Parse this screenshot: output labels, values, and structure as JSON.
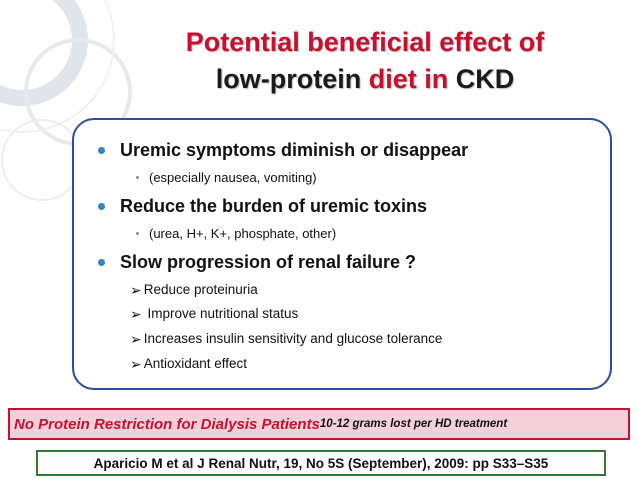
{
  "slide": {
    "title": {
      "line1": "Potential beneficial effect of",
      "line2_part1": "low-protein",
      "line2_part2": "diet in",
      "line2_part3": "CKD"
    },
    "bullets": [
      {
        "text": "Uremic symptoms diminish or disappear",
        "sub": "(especially nausea, vomiting)"
      },
      {
        "text": "Reduce the burden of uremic toxins",
        "sub": "(urea, H+, K+, phosphate, other)"
      },
      {
        "text": "Slow progression of renal failure ?",
        "checks": [
          "Reduce proteinuria",
          " Improve nutritional status",
          "Increases insulin sensitivity and glucose tolerance",
          "Antioxidant effect"
        ]
      }
    ],
    "note": {
      "main": "No Protein Restriction for Dialysis Patients",
      "sub": "10-12 grams lost per HD treatment"
    },
    "reference": "Aparicio M et al J Renal Nutr, 19, No 5S (September), 2009: pp S33–S35"
  },
  "colors": {
    "title_red": "#c8102e",
    "box_border": "#2b4fa0",
    "bullet_blue": "#2f86c0",
    "note_border": "#c8102e",
    "note_fill": "#f4d1da",
    "reference_border": "#2e7d32"
  },
  "icons": {
    "bullet": "round-bullet-icon",
    "sub_bullet": "small-dot-icon",
    "check": "checkmark-arrow-icon",
    "decoration": "ring-decoration-icon"
  }
}
